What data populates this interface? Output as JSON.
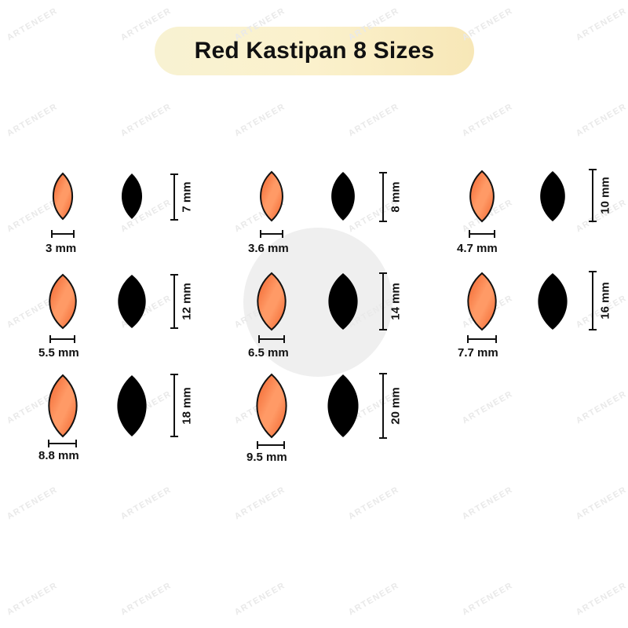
{
  "title": "Red Kastipan 8 Sizes",
  "watermark": "ARTENEER",
  "colors": {
    "title_bg": "#faf0c8",
    "fill_light": "#ff9a66",
    "fill_dark": "#f0602a",
    "outline": "#111111",
    "silhouette": "#000000"
  },
  "items": [
    {
      "width_label": "3 mm",
      "height_label": "7 mm"
    },
    {
      "width_label": "3.6 mm",
      "height_label": "8 mm"
    },
    {
      "width_label": "4.7 mm",
      "height_label": "10 mm"
    },
    {
      "width_label": "5.5 mm",
      "height_label": "12 mm"
    },
    {
      "width_label": "6.5 mm",
      "height_label": "14 mm"
    },
    {
      "width_label": "7.7 mm",
      "height_label": "16 mm"
    },
    {
      "width_label": "8.8 mm",
      "height_label": "18 mm"
    },
    {
      "width_label": "9.5 mm",
      "height_label": "20 mm"
    }
  ]
}
